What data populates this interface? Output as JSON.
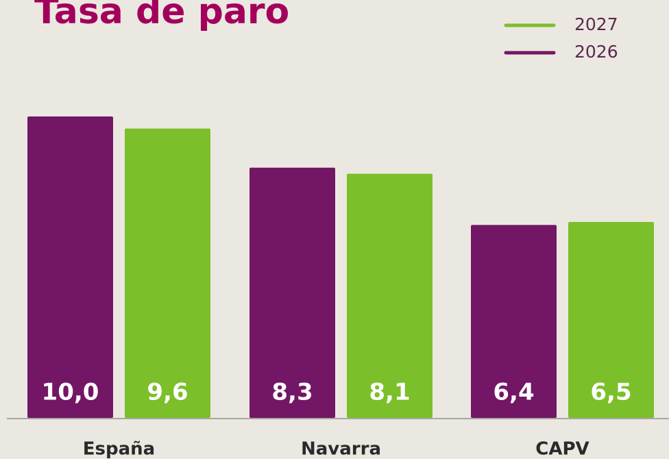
{
  "chart_data": {
    "type": "bar",
    "title": "Tasa de paro",
    "categories": [
      "España",
      "Navarra",
      "CAPV"
    ],
    "series": [
      {
        "name": "2026",
        "color": "#731665",
        "values": [
          10.0,
          8.3,
          6.4
        ],
        "value_labels": [
          "10,0",
          "8,3",
          "6,4"
        ]
      },
      {
        "name": "2027",
        "color": "#7bbf2a",
        "values": [
          9.6,
          8.1,
          6.5
        ],
        "value_labels": [
          "9,6",
          "8,1",
          "6,5"
        ]
      }
    ]
  }
}
